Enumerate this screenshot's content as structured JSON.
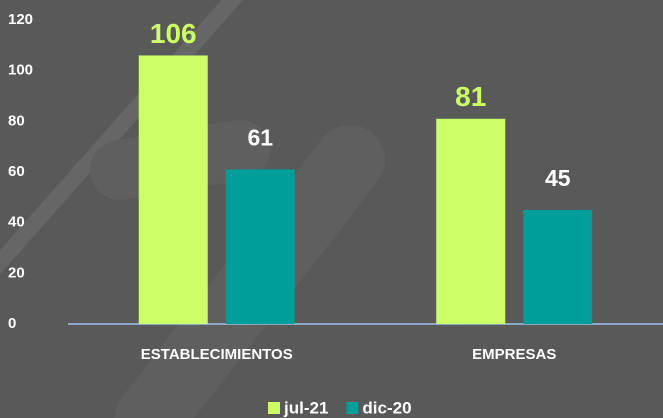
{
  "chart_data": {
    "type": "bar",
    "categories": [
      "ESTABLECIMIENTOS",
      "EMPRESAS"
    ],
    "series": [
      {
        "name": "jul-21",
        "color": "#ccff66",
        "values": [
          106,
          81
        ]
      },
      {
        "name": "dic-20",
        "color": "#009e9a",
        "values": [
          61,
          45
        ]
      }
    ],
    "ylim": [
      0,
      120
    ],
    "yticks": [
      0,
      20,
      40,
      60,
      80,
      100,
      120
    ],
    "grid": false,
    "legend": "bottom"
  }
}
